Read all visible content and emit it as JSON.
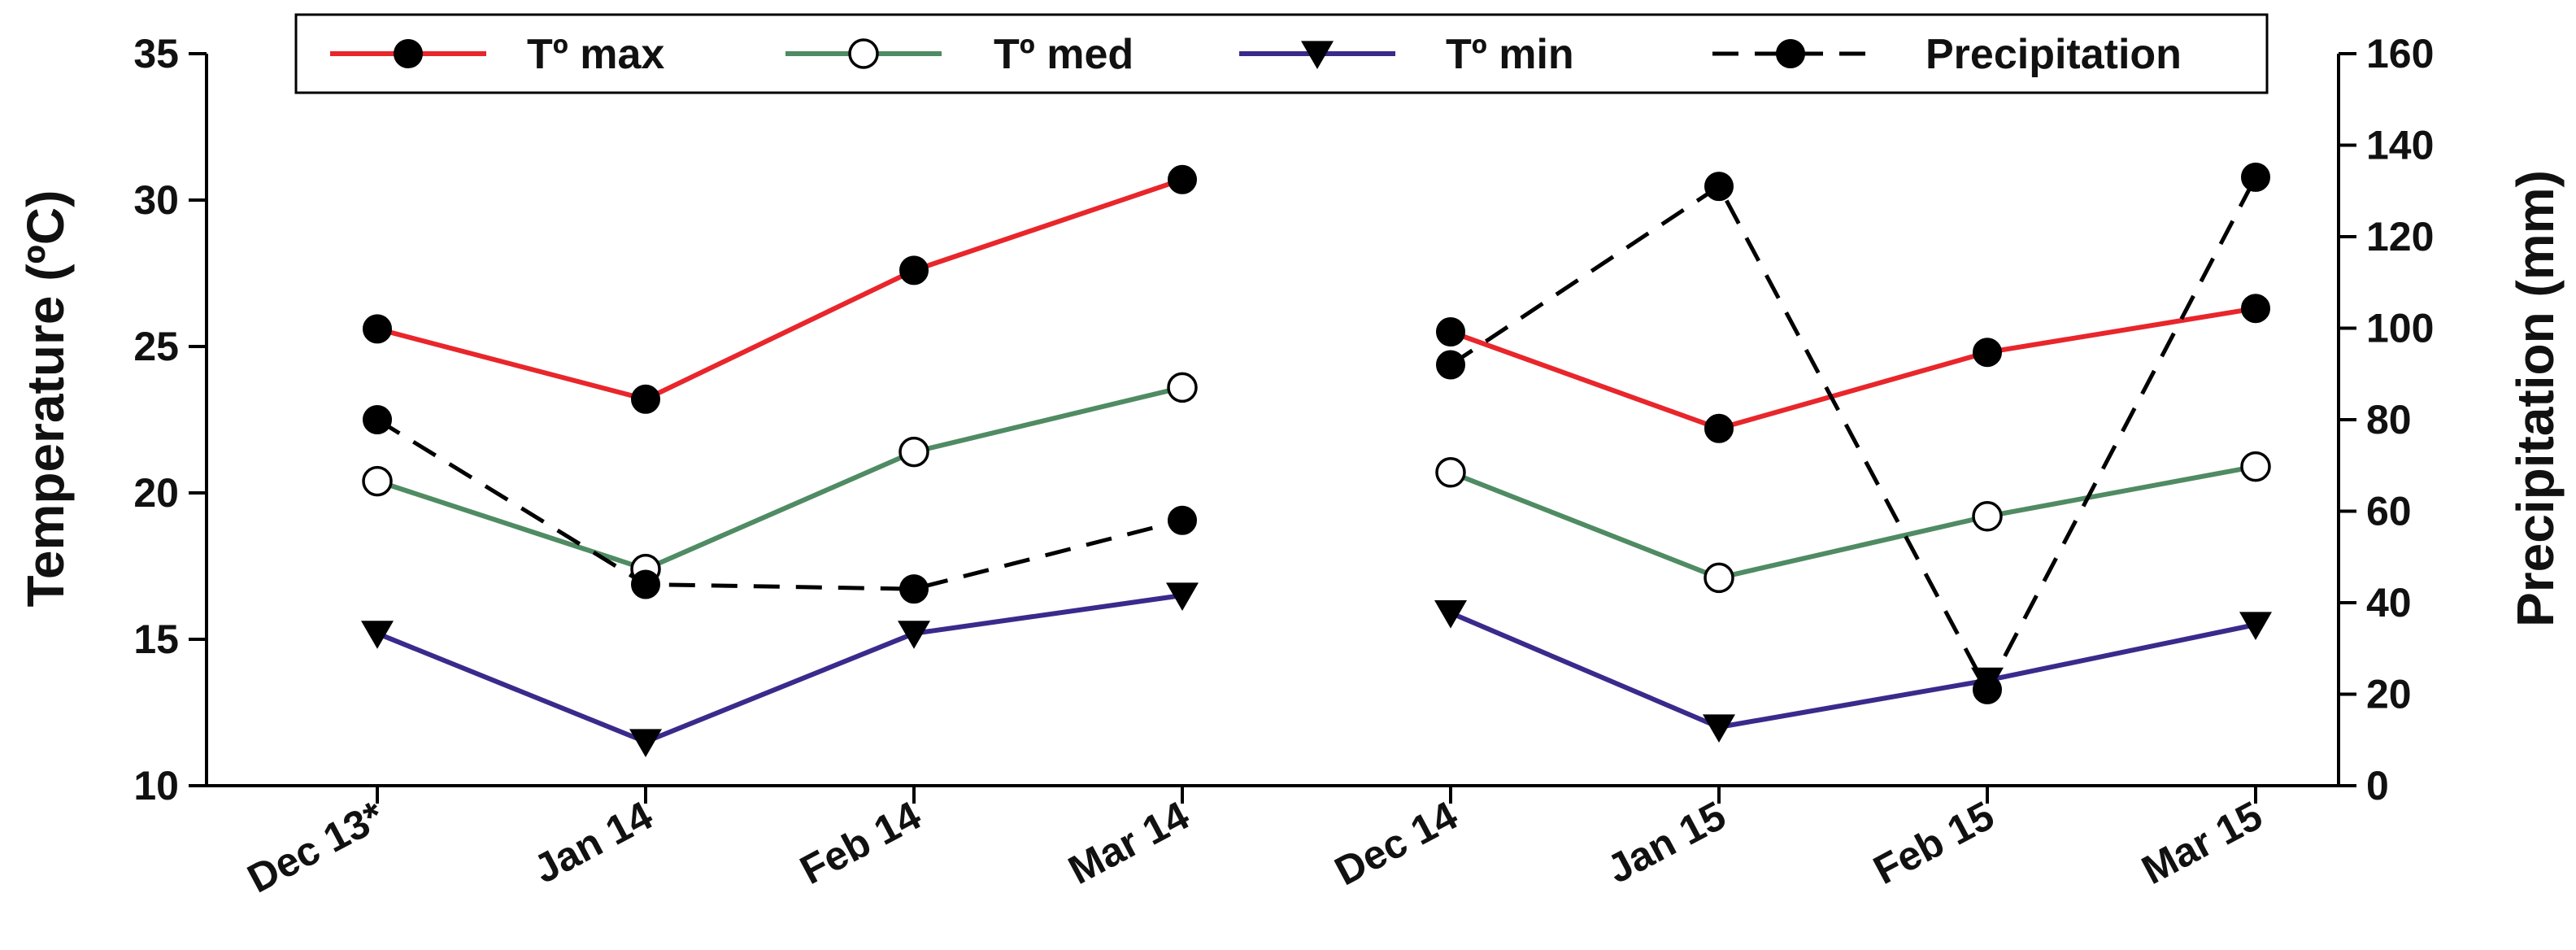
{
  "chart_data": {
    "type": "line",
    "title": "",
    "categories": [
      "Dec 13*",
      "Jan 14",
      "Feb 14",
      "Mar 14",
      "Dec 14",
      "Jan 15",
      "Feb 15",
      "Mar 15"
    ],
    "segments": [
      [
        0,
        1,
        2,
        3
      ],
      [
        4,
        5,
        6,
        7
      ]
    ],
    "left_axis": {
      "label": "Temperature (ºC)",
      "ylim": [
        10,
        35
      ],
      "ticks": [
        10,
        15,
        20,
        25,
        30,
        35
      ]
    },
    "right_axis": {
      "label": "Precipitation (mm)",
      "ylim": [
        0,
        160
      ],
      "ticks": [
        0,
        20,
        40,
        60,
        80,
        100,
        120,
        140,
        160
      ]
    },
    "series": [
      {
        "name": "Tº max",
        "axis": "left",
        "color": "#e8262b",
        "marker": "filled-circle",
        "dash": "solid",
        "values": [
          25.6,
          23.2,
          27.6,
          30.7,
          25.5,
          22.2,
          24.8,
          26.3
        ]
      },
      {
        "name": "Tº med",
        "axis": "left",
        "color": "#4f8b63",
        "marker": "open-circle",
        "dash": "solid",
        "values": [
          20.4,
          17.4,
          21.4,
          23.6,
          20.7,
          17.1,
          19.2,
          20.9
        ]
      },
      {
        "name": "Tº min",
        "axis": "left",
        "color": "#3a2a8c",
        "marker": "triangle-down",
        "dash": "solid",
        "values": [
          15.2,
          11.5,
          15.2,
          16.5,
          15.9,
          12.0,
          13.6,
          15.5
        ]
      },
      {
        "name": "Precipitation",
        "axis": "right",
        "color": "#000000",
        "marker": "filled-circle",
        "dash": "dashed",
        "values": [
          80,
          44,
          43,
          58,
          92,
          131,
          21,
          133
        ]
      }
    ],
    "legend": {
      "position": "top",
      "frame": true
    },
    "grid": false
  }
}
